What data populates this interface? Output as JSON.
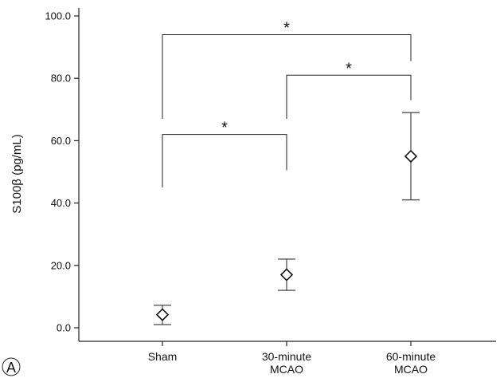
{
  "panel_label": "A",
  "chart_data": {
    "type": "scatter",
    "ylabel": "S100β (pg/mL)",
    "xlabel": "",
    "ylim": [
      0,
      100
    ],
    "yticks": [
      0,
      20,
      40,
      60,
      80,
      100
    ],
    "ytick_labels": [
      "0.0",
      "20.0",
      "40.0",
      "60.0",
      "80.0",
      "100.0"
    ],
    "categories": [
      {
        "line1": "Sham",
        "line2": ""
      },
      {
        "line1": "30-minute",
        "line2": "MCAO"
      },
      {
        "line1": "60-minute",
        "line2": "MCAO"
      }
    ],
    "marker": "diamond",
    "points": [
      {
        "mean": 4.2,
        "lower": 1.0,
        "upper": 7.2
      },
      {
        "mean": 17.0,
        "lower": 12.0,
        "upper": 22.0
      },
      {
        "mean": 55.0,
        "lower": 41.0,
        "upper": 69.0
      }
    ],
    "significance": [
      {
        "from": 0,
        "to": 1,
        "top": 62,
        "left_bottom": 45,
        "right_bottom": 50.5,
        "label": "*"
      },
      {
        "from": 1,
        "to": 2,
        "top": 81,
        "left_bottom": 67,
        "right_bottom": 73,
        "label": "*"
      },
      {
        "from": 0,
        "to": 2,
        "top": 94,
        "left_bottom": 67,
        "right_bottom": 85.5,
        "label": "*"
      }
    ]
  }
}
